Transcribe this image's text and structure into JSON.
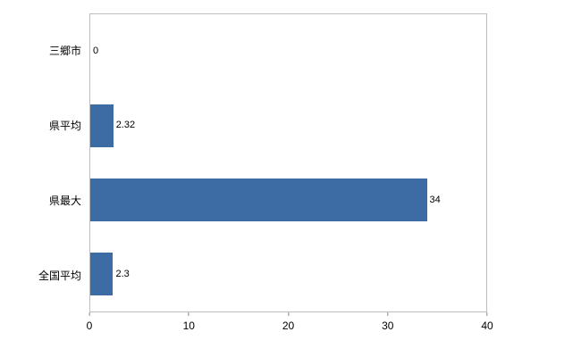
{
  "chart_data": {
    "type": "bar",
    "orientation": "horizontal",
    "title": "",
    "xlabel": "",
    "ylabel": "",
    "categories": [
      "三郷市",
      "県平均",
      "県最大",
      "全国平均"
    ],
    "values": [
      0,
      2.32,
      34,
      2.3
    ],
    "value_labels": [
      "0",
      "2.32",
      "34",
      "2.3"
    ],
    "xlim": [
      0,
      40
    ],
    "xticks": [
      0,
      10,
      20,
      30,
      40
    ],
    "xtick_labels": [
      "0",
      "10",
      "20",
      "30",
      "40"
    ],
    "bar_color": "#3d6ba3",
    "plot_border_color": "#bdbdbd",
    "grid": false,
    "legend": false
  }
}
